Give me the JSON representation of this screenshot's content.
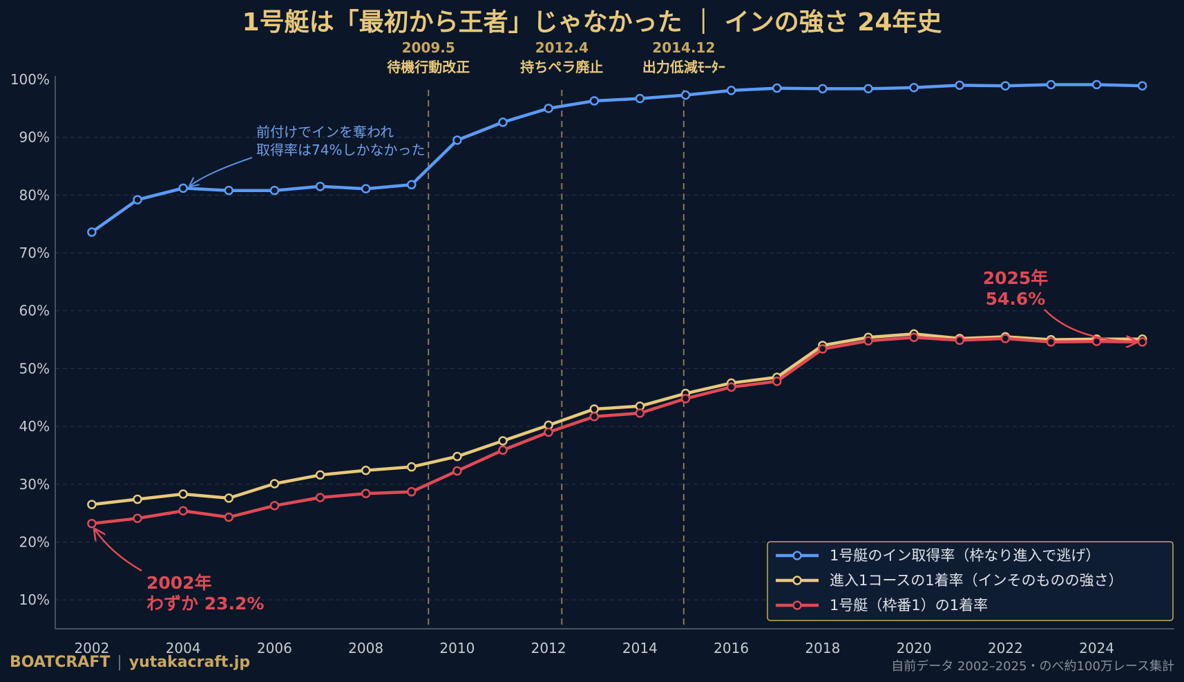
{
  "header": {
    "title": "1号艇は「最初から王者」じゃなかった ｜ インの強さ 24年史"
  },
  "footer": {
    "brand": "BOATCRAFT",
    "separator": "|",
    "site": "yutakacraft.jp",
    "source": "自前データ 2002–2025・のべ約100万レース集計"
  },
  "colors": {
    "background": "#0b1628",
    "title": "#e8c97a",
    "blue": "#5b9bf5",
    "yellow": "#e8c97a",
    "red": "#e04a55",
    "axis_text": "#c8ccd2"
  },
  "chart_data": {
    "type": "line",
    "x": [
      2002,
      2003,
      2004,
      2005,
      2006,
      2007,
      2008,
      2009,
      2010,
      2011,
      2012,
      2013,
      2014,
      2015,
      2016,
      2017,
      2018,
      2019,
      2020,
      2021,
      2022,
      2023,
      2024,
      2025
    ],
    "xticks": [
      2002,
      2004,
      2006,
      2008,
      2010,
      2012,
      2014,
      2016,
      2018,
      2020,
      2022,
      2024
    ],
    "xlim": [
      2001.2,
      2025.7
    ],
    "ylim": [
      5,
      100
    ],
    "yticks": [
      10,
      20,
      30,
      40,
      50,
      60,
      70,
      80,
      90,
      100
    ],
    "ytick_suffix": "%",
    "grid": "horizontal",
    "legend_position": "bottom-right",
    "series": [
      {
        "name": "1号艇のイン取得率（枠なり進入で逃げ）",
        "color": "#5b9bf5",
        "values": [
          73.6,
          79.2,
          81.2,
          80.8,
          80.8,
          81.5,
          81.1,
          81.8,
          89.5,
          92.6,
          95.0,
          96.3,
          96.7,
          97.3,
          98.1,
          98.5,
          98.4,
          98.4,
          98.6,
          99.0,
          98.9,
          99.1,
          99.1,
          98.9
        ]
      },
      {
        "name": "進入1コースの1着率（インそのものの強さ）",
        "color": "#e8c97a",
        "values": [
          26.5,
          27.4,
          28.3,
          27.6,
          30.1,
          31.6,
          32.4,
          33.0,
          34.8,
          37.5,
          40.2,
          43.0,
          43.5,
          45.7,
          47.5,
          48.5,
          54.0,
          55.4,
          56.0,
          55.2,
          55.5,
          55.0,
          55.1,
          55.1
        ]
      },
      {
        "name": "1号艇（枠番1）の1着率",
        "color": "#e04a55",
        "values": [
          23.2,
          24.1,
          25.4,
          24.3,
          26.3,
          27.7,
          28.4,
          28.7,
          32.3,
          35.9,
          39.0,
          41.7,
          42.3,
          44.8,
          46.8,
          47.8,
          53.4,
          54.8,
          55.4,
          54.9,
          55.2,
          54.6,
          54.7,
          54.6
        ]
      }
    ],
    "events": [
      {
        "x": 2009.37,
        "date": "2009.5",
        "label": "待機行動改正"
      },
      {
        "x": 2012.29,
        "date": "2012.4",
        "label": "持ちペラ廃止"
      },
      {
        "x": 2014.96,
        "date": "2014.12",
        "label": "出力低減ﾓｰﾀｰ"
      }
    ],
    "annotations": [
      {
        "id": "blue-note",
        "lines": [
          "前付けでインを奪われ",
          "取得率は74%しかなかった"
        ]
      },
      {
        "id": "red-start",
        "lines": [
          "2002年",
          "わずか 23.2%"
        ]
      },
      {
        "id": "red-end",
        "lines": [
          "2025年",
          "54.6%"
        ]
      }
    ]
  }
}
